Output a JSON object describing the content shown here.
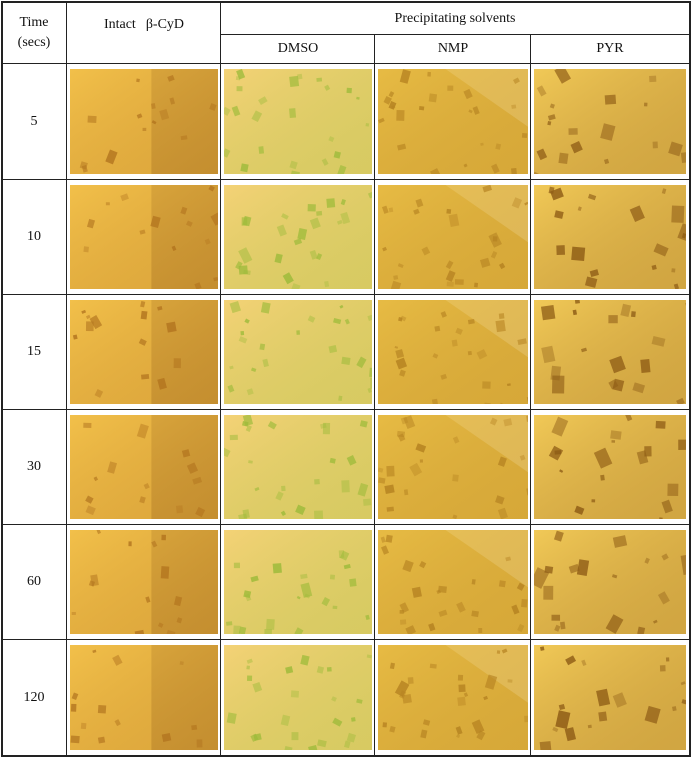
{
  "header": {
    "time_line1": "Time",
    "time_line2": "(secs)",
    "intact_label": "Intact",
    "intact_cyd": "β-CyD",
    "group_label": "Precipitating solvents",
    "solvents": [
      "DMSO",
      "NMP",
      "PYR"
    ]
  },
  "rows": [
    {
      "time": "5"
    },
    {
      "time": "10"
    },
    {
      "time": "15"
    },
    {
      "time": "30"
    },
    {
      "time": "60"
    },
    {
      "time": "120"
    }
  ],
  "photo_colors": {
    "intact": [
      "#f2c04a",
      "#b3751f"
    ],
    "dmso": [
      "#f4d276",
      "#9dbb3a"
    ],
    "nmp": [
      "#e7bb44",
      "#b58221"
    ],
    "pyr": [
      "#f1c957",
      "#8f5d16"
    ]
  }
}
